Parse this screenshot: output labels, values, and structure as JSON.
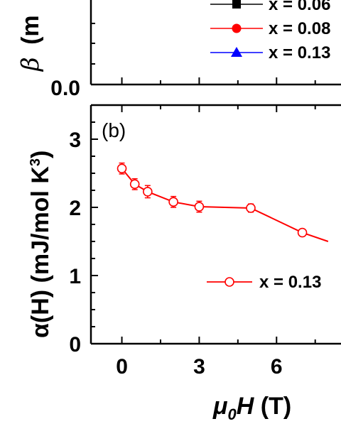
{
  "chart_data": [
    {
      "panel": "a",
      "type": "line",
      "ylabel_prefix": "β",
      "ylabel_visible": "(m",
      "ytick_labels": [
        "0.0"
      ],
      "legend": [
        {
          "name": "x = 0.06",
          "color": "#000000",
          "marker": "square"
        },
        {
          "name": "x = 0.08",
          "color": "#ff0000",
          "marker": "circle"
        },
        {
          "name": "x = 0.13",
          "color": "#0000ff",
          "marker": "triangle"
        }
      ]
    },
    {
      "panel": "b",
      "panel_label": "(b)",
      "type": "line",
      "xlabel_mu": "μ",
      "xlabel_sub": "0",
      "xlabel_H": "H",
      "xlabel_unit": " (T)",
      "ylabel": "α(H) (mJ/mol K",
      "ylabel_sup": "3",
      "ylabel_close": ")",
      "xlim": [
        -1.2,
        8.5
      ],
      "ylim": [
        0,
        3.5
      ],
      "xtick_labels": [
        "0",
        "3",
        "6"
      ],
      "xticks": [
        0,
        3,
        6
      ],
      "ytick_labels": [
        "0",
        "1",
        "2",
        "3"
      ],
      "yticks": [
        0,
        1,
        2,
        3
      ],
      "series": [
        {
          "name": "x = 0.13",
          "color": "#ff0000",
          "marker": "open-circle",
          "x": [
            0,
            0.5,
            1,
            2,
            3,
            5,
            7,
            8
          ],
          "y": [
            2.57,
            2.34,
            2.23,
            2.08,
            2.01,
            1.99,
            1.63,
            1.5
          ],
          "err": [
            0.08,
            0.08,
            0.09,
            0.08,
            0.08,
            0.06,
            0.04,
            0
          ]
        }
      ]
    }
  ]
}
